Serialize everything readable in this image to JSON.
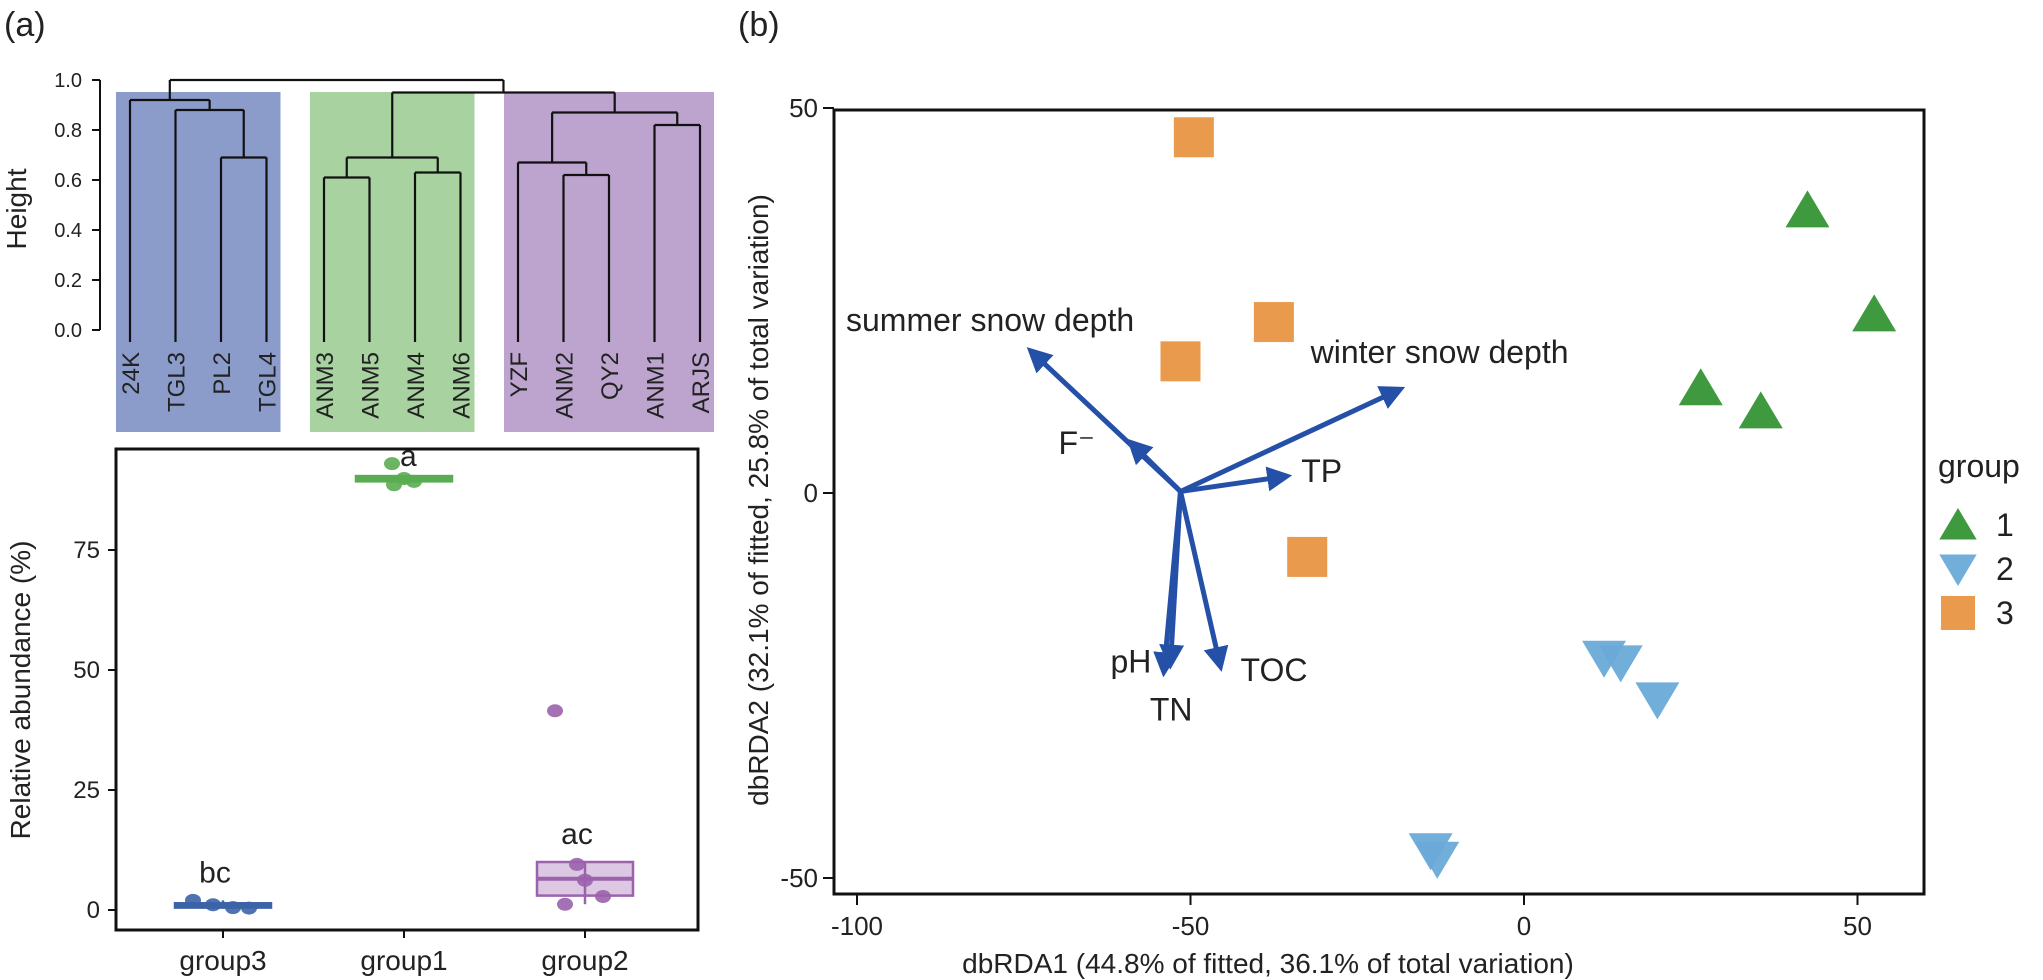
{
  "panels": {
    "a_label": "(a)",
    "b_label": "(b)"
  },
  "colors": {
    "group1": "#3f9a3f",
    "group2": "#6aaad8",
    "group3": "#ea9a4c",
    "bg_group3": "#8b9ccb",
    "bg_group1": "#a8d3a0",
    "bg_group2": "#bca4cf",
    "box_group3": "#3c63a7",
    "box_group1": "#5aac52",
    "box_group2": "#9b62ad",
    "arrow": "#2450a8"
  },
  "chart_data": [
    {
      "type": "dendrogram",
      "ylabel": "Height",
      "ylim": [
        0,
        1.0
      ],
      "yticks": [
        "0.0",
        "0.2",
        "0.4",
        "0.6",
        "0.8",
        "1.0"
      ],
      "ytick_values": [
        0,
        0.2,
        0.4,
        0.6,
        0.8,
        1.0
      ],
      "leaves": [
        "24K",
        "TGL3",
        "PL2",
        "TGL4",
        "ANM3",
        "ANM5",
        "ANM4",
        "ANM6",
        "YZF",
        "ANM2",
        "QY2",
        "ANM1",
        "ARJS"
      ],
      "clusters": [
        {
          "leaves": [
            "24K",
            "TGL3",
            "PL2",
            "TGL4"
          ],
          "group": "group3"
        },
        {
          "leaves": [
            "ANM3",
            "ANM5",
            "ANM4",
            "ANM6"
          ],
          "group": "group1"
        },
        {
          "leaves": [
            "YZF",
            "ANM2",
            "QY2",
            "ANM1",
            "ARJS"
          ],
          "group": "group2"
        }
      ],
      "merges": [
        {
          "a": "PL2",
          "b": "TGL4",
          "height": 0.69
        },
        {
          "a": "TGL3",
          "b": "PL2+TGL4",
          "height": 0.88
        },
        {
          "a": "24K",
          "b": "TGL3+PL2+TGL4",
          "height": 0.92
        },
        {
          "a": "ANM3",
          "b": "ANM5",
          "height": 0.61
        },
        {
          "a": "ANM4",
          "b": "ANM6",
          "height": 0.63
        },
        {
          "a": "ANM3+ANM5",
          "b": "ANM4+ANM6",
          "height": 0.69
        },
        {
          "a": "ANM2",
          "b": "QY2",
          "height": 0.62
        },
        {
          "a": "YZF",
          "b": "ANM2+QY2",
          "height": 0.67
        },
        {
          "a": "ANM1",
          "b": "ARJS",
          "height": 0.82
        },
        {
          "a": "YZF+ANM2+QY2",
          "b": "ANM1+ARJS",
          "height": 0.87
        },
        {
          "a": "group1",
          "b": "group2",
          "height": 0.95
        },
        {
          "a": "group3",
          "b": "group1+group2",
          "height": 1.0
        }
      ]
    },
    {
      "type": "box",
      "ylabel": "Relative abundance (%)",
      "ylim": [
        -4,
        97
      ],
      "yticks": [
        "0",
        "25",
        "50",
        "75"
      ],
      "ytick_values": [
        0,
        25,
        50,
        75
      ],
      "categories": [
        "group3",
        "group1",
        "group2"
      ],
      "boxes": [
        {
          "group": "group3",
          "q1": 0.5,
          "median": 0.9,
          "q3": 1.4,
          "whisker_low": 0.3,
          "whisker_high": 2.0,
          "points": [
            2.0,
            1.1,
            0.5,
            0.4
          ],
          "letter": "bc"
        },
        {
          "group": "group1",
          "q1": 89.3,
          "median": 89.9,
          "q3": 90.4,
          "whisker_low": 88.6,
          "whisker_high": 90.6,
          "points": [
            93.0,
            89.9,
            88.6,
            89.3
          ],
          "letter": "a"
        },
        {
          "group": "group2",
          "q1": 3.0,
          "median": 6.5,
          "q3": 10.0,
          "whisker_low": 1.2,
          "whisker_high": 10.0,
          "points": [
            41.5,
            9.5,
            6.2,
            2.8,
            1.2
          ],
          "letter": "ac"
        }
      ]
    },
    {
      "type": "scatter",
      "xlabel": "dbRDA1 (44.8% of fitted, 36.1% of total variation)",
      "ylabel": "dbRDA2 (32.1% of fitted, 25.8% of total variation)",
      "xlim": [
        -103,
        60
      ],
      "ylim": [
        -50,
        50
      ],
      "xticks": [
        "-100",
        "-50",
        "0",
        "50"
      ],
      "xtick_values": [
        -100,
        -50,
        0,
        50
      ],
      "yticks": [
        "-50",
        "0",
        "50"
      ],
      "ytick_values": [
        -50,
        0,
        50
      ],
      "legend": {
        "title": "group",
        "entries": [
          "1",
          "2",
          "3"
        ],
        "position": "right"
      },
      "series": [
        {
          "name": "1",
          "marker": "triangle-up",
          "points": [
            [
              42.5,
              36.7
            ],
            [
              52.5,
              23.2
            ],
            [
              26.5,
              13.6
            ],
            [
              35.5,
              10.6
            ]
          ]
        },
        {
          "name": "2",
          "marker": "triangle-down",
          "points": [
            [
              12.0,
              -21.4
            ],
            [
              14.5,
              -22.0
            ],
            [
              20.0,
              -26.8
            ],
            [
              -14.0,
              -46.4
            ],
            [
              -13.0,
              -47.5
            ]
          ]
        },
        {
          "name": "3",
          "marker": "square",
          "points": [
            [
              -49.5,
              46.2
            ],
            [
              -37.5,
              22.2
            ],
            [
              -51.5,
              17.1
            ],
            [
              -32.5,
              -8.3
            ]
          ]
        }
      ],
      "origin": [
        -51.5,
        0.2
      ],
      "vectors": [
        {
          "label": "summer snow depth",
          "end": [
            -74.0,
            18.5
          ]
        },
        {
          "label": "winter snow depth",
          "end": [
            -18.5,
            13.5
          ]
        },
        {
          "label": "F⁻",
          "end": [
            -59.0,
            6.6
          ]
        },
        {
          "label": "TP",
          "end": [
            -35.5,
            2.2
          ]
        },
        {
          "label": "pH",
          "end": [
            -53.0,
            -22.3
          ]
        },
        {
          "label": "TN",
          "end": [
            -54.0,
            -23.3
          ]
        },
        {
          "label": "TOC",
          "end": [
            -45.5,
            -22.6
          ]
        }
      ]
    }
  ]
}
